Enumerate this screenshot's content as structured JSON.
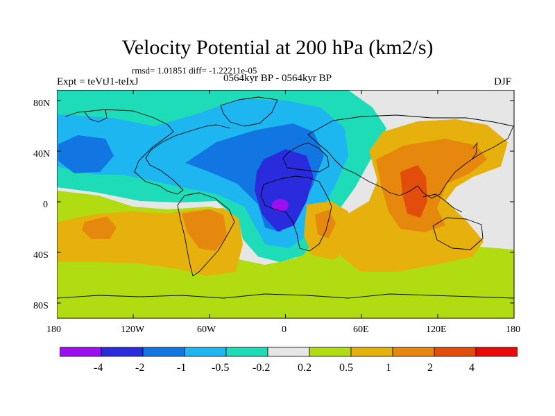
{
  "header": {
    "title": "Velocity Potential at 200 hPa (km2/s)",
    "stats": "rmsd= 1.01851 diff= -1.22211e-05",
    "experiment": "Expt = teVtJ1-teIxJ",
    "period": "0564kyr BP - 0564kyr BP",
    "season": "DJF"
  },
  "map": {
    "lat_ticks": [
      "80N",
      "40N",
      "0",
      "40S",
      "80S"
    ],
    "lon_ticks": [
      "180",
      "120W",
      "60W",
      "0",
      "60E",
      "120E",
      "180"
    ]
  },
  "legend": {
    "colors": [
      "#9b0ff0",
      "#2a2bdc",
      "#1276e2",
      "#1eb6f0",
      "#1fdcb8",
      "#e6e6e6",
      "#b2dc12",
      "#e6b10c",
      "#e6880d",
      "#e24d0c",
      "#e80a0a"
    ],
    "labels": [
      "-4",
      "-2",
      "-1",
      "-0.5",
      "-0.2",
      "0.2",
      "0.5",
      "1",
      "2",
      "4"
    ]
  }
}
